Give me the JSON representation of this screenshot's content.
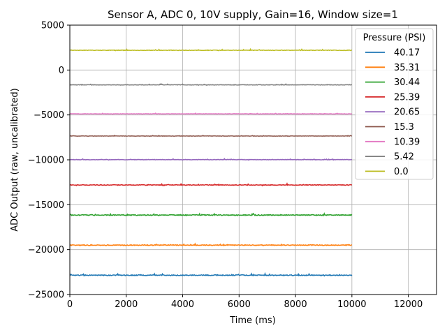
{
  "chart_data": {
    "type": "line",
    "title": "Sensor A, ADC 0, 10V supply, Gain=16, Window size=1",
    "xlabel": "Time (ms)",
    "ylabel": "ADC Output (raw, uncalibrated)",
    "xlim": [
      0,
      13000
    ],
    "ylim": [
      -25000,
      5000
    ],
    "xticks": [
      0,
      2000,
      4000,
      6000,
      8000,
      10000,
      12000
    ],
    "yticks": [
      -25000,
      -20000,
      -15000,
      -10000,
      -5000,
      0,
      5000
    ],
    "grid": true,
    "legend": {
      "title": "Pressure (PSI)",
      "placement": "top-right"
    },
    "x_range": [
      0,
      10000
    ],
    "series": [
      {
        "name": "40.17",
        "color": "#1f77b4",
        "level": -22850,
        "noise": 90
      },
      {
        "name": "35.31",
        "color": "#ff7f0e",
        "level": -19500,
        "noise": 80
      },
      {
        "name": "30.44",
        "color": "#2ca02c",
        "level": -16150,
        "noise": 90
      },
      {
        "name": "25.39",
        "color": "#d62728",
        "level": -12800,
        "noise": 70
      },
      {
        "name": "20.65",
        "color": "#9467bd",
        "level": -9980,
        "noise": 50
      },
      {
        "name": "15.3",
        "color": "#8c564b",
        "level": -7350,
        "noise": 40
      },
      {
        "name": "10.39",
        "color": "#e377c2",
        "level": -4880,
        "noise": 40
      },
      {
        "name": "5.42",
        "color": "#7f7f7f",
        "level": -1650,
        "noise": 50
      },
      {
        "name": "0.0",
        "color": "#bcbd22",
        "level": 2200,
        "noise": 60
      }
    ]
  }
}
